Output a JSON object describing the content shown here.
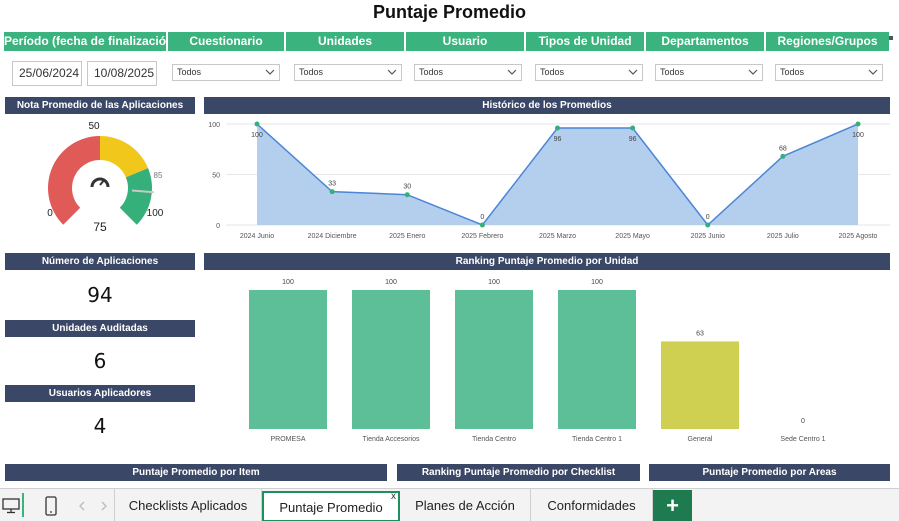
{
  "page": {
    "title": "Puntaje Promedio"
  },
  "filters": {
    "headers": [
      "Período (fecha de finalización)",
      "Cuestionario",
      "Unidades",
      "Usuario",
      "Tipos de Unidad",
      "Departamentos",
      "Regiones/Grupos"
    ],
    "date_from": "25/06/2024",
    "date_to": "10/08/2025",
    "dropdowns": [
      "Todos",
      "Todos",
      "Todos",
      "Todos",
      "Todos",
      "Todos"
    ]
  },
  "panels": {
    "gauge_title": "Nota Promedio de las Aplicaciones",
    "history_title": "Histórico de los Promedios",
    "applications_title": "Número de Aplicaciones",
    "ranking_unit_title": "Ranking Puntaje Promedio por Unidad",
    "units_title": "Unidades Auditadas",
    "users_title": "Usuarios Aplicadores",
    "item_title": "Puntaje Promedio por Item",
    "ranking_checklist_title": "Ranking Puntaje Promedio por Checklist",
    "areas_title": "Puntaje Promedio por Areas"
  },
  "kpis": {
    "applications": "94",
    "units": "6",
    "users": "4"
  },
  "gauge": {
    "value": 75,
    "target": 85,
    "min": 0,
    "max": 100,
    "mid": 50,
    "labels": {
      "min": "0",
      "mid": "50",
      "max": "100",
      "target": "85",
      "value": "75"
    },
    "colors": {
      "red": "#e05a57",
      "yellow": "#f2c71b",
      "green": "#35b07a"
    }
  },
  "chart_data": [
    {
      "type": "area",
      "title": "Histórico de los Promedios",
      "categories": [
        "2024 Junio",
        "2024 Diciembre",
        "2025 Enero",
        "2025 Febrero",
        "2025 Marzo",
        "2025 Mayo",
        "2025 Junio",
        "2025 Julio",
        "2025 Agosto"
      ],
      "values": [
        100,
        33,
        30,
        0,
        96,
        96,
        0,
        68,
        100
      ],
      "yticks": [
        "0",
        "50",
        "100"
      ],
      "ylim": [
        0,
        100
      ],
      "grid": true,
      "colors": {
        "fill": "#b4cfee",
        "line": "#4a86d6",
        "marker": "#35b07a"
      }
    },
    {
      "type": "bar",
      "title": "Ranking Puntaje Promedio por Unidad",
      "categories": [
        "PROMESA",
        "Tienda Accesorios",
        "Tienda Centro",
        "Tienda Centro 1",
        "General",
        "Sede Centro 1"
      ],
      "values": [
        100,
        100,
        100,
        100,
        63,
        0
      ],
      "ylim": [
        0,
        100
      ],
      "colors": [
        "#5cbf98",
        "#5cbf98",
        "#5cbf98",
        "#5cbf98",
        "#cfcf52",
        "#cfcf52"
      ]
    }
  ],
  "tabs": {
    "items": [
      "Checklists Aplicados",
      "Puntaje Promedio",
      "Planes de Acción",
      "Conformidades"
    ],
    "active": "Puntaje Promedio",
    "close_symbol": "x",
    "add_symbol": "+"
  },
  "icons": {
    "desktop": "desktop-icon",
    "mobile": "mobile-icon",
    "prev": "chevron-left-icon",
    "next": "chevron-right-icon"
  },
  "colors": {
    "accent_green": "#3bb37e",
    "header_navy": "#3a4766",
    "tab_green": "#1e7a4f"
  }
}
